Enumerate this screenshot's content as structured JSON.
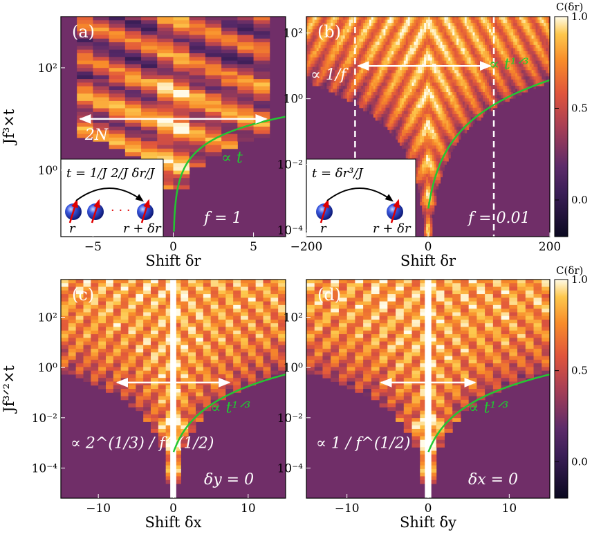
{
  "figure": {
    "colorbar_title": "C(δr)",
    "colorbar_ticks": [
      "1.0",
      "0.5",
      "0.0"
    ],
    "colorbar_values": [
      1.0,
      0.5,
      0.0
    ]
  },
  "chart_data": [
    {
      "type": "heatmap",
      "panel_label": "(a)",
      "xlabel": "Shift δr",
      "ylabel": "Jf³×t",
      "xlim": [
        -7,
        7
      ],
      "ylim_log10": [
        -1.3,
        3.0
      ],
      "x_ticks": [
        -5,
        0,
        5
      ],
      "x_tick_labels": [
        "−5",
        "0",
        "5"
      ],
      "y_ticks_log10": [
        0,
        2
      ],
      "y_tick_labels": [
        "10⁰",
        "10²"
      ],
      "curve": {
        "label": "∝ t",
        "law": "linear",
        "color": "#22c832"
      },
      "arrow": {
        "from": -5.8,
        "to": 5.8,
        "at_log10": 1.0,
        "label": "2N"
      },
      "param_label": "f = 1",
      "inset": {
        "eq": "t = 1/J   2/J   δr/J",
        "dots": "· · ·",
        "left_site": "r",
        "right_site": "r + δr"
      }
    },
    {
      "type": "heatmap",
      "panel_label": "(b)",
      "xlabel": "Shift δr",
      "ylabel": "",
      "xlim": [
        -200,
        200
      ],
      "ylim_log10": [
        -4.2,
        2.5
      ],
      "x_ticks": [
        -200,
        0,
        200
      ],
      "x_tick_labels": [
        "−200",
        "0",
        "200"
      ],
      "y_ticks_log10": [
        -4,
        -2,
        0,
        2
      ],
      "y_tick_labels": [
        "10⁻⁴",
        "10⁻²",
        "10⁰",
        "10²"
      ],
      "curve": {
        "label": "∝ t¹ᐟ³",
        "law": "t^(1/3)",
        "color": "#22c832"
      },
      "dashed_lines_x": [
        -120,
        108
      ],
      "arrow": {
        "from": -115,
        "to": 103,
        "at_log10": 1.0,
        "label": "∝ 1/f"
      },
      "param_label": "f = 0.01",
      "inset": {
        "eq": "t = δr³/J",
        "left_site": "r",
        "right_site": "r + δr"
      }
    },
    {
      "type": "heatmap",
      "panel_label": "(c)",
      "xlabel": "Shift δx",
      "ylabel": "Jf³ᐟ²×t",
      "xlim": [
        -15,
        15
      ],
      "ylim_log10": [
        -5.2,
        3.5
      ],
      "x_ticks": [
        -10,
        0,
        10
      ],
      "x_tick_labels": [
        "−10",
        "0",
        "10"
      ],
      "y_ticks_log10": [
        -4,
        -2,
        0,
        2
      ],
      "y_tick_labels": [
        "10⁻⁴",
        "10⁻²",
        "10⁰",
        "10²"
      ],
      "curve": {
        "label": "∝ t¹ᐟ³",
        "law": "t^(1/3)",
        "color": "#22c832"
      },
      "arrow": {
        "from": -7.5,
        "to": 7.5,
        "at_log10": -0.6,
        "label": ""
      },
      "scaling_label": "∝ 2^(1/3) / f^(1/2)",
      "param_label": "δy = 0"
    },
    {
      "type": "heatmap",
      "panel_label": "(d)",
      "xlabel": "Shift δy",
      "ylabel": "",
      "xlim": [
        -15,
        15
      ],
      "ylim_log10": [
        -5.2,
        3.5
      ],
      "x_ticks": [
        -10,
        0,
        10
      ],
      "x_tick_labels": [
        "−10",
        "0",
        "10"
      ],
      "y_ticks_log10": [
        -4,
        -2,
        0,
        2
      ],
      "y_tick_labels": [
        "10⁻⁴",
        "10⁻²",
        "10⁰",
        "10²"
      ],
      "curve": {
        "label": "∝ t¹ᐟ³",
        "law": "t^(1/3)",
        "color": "#22c832"
      },
      "arrow": {
        "from": -5.8,
        "to": 5.8,
        "at_log10": -0.6,
        "label": ""
      },
      "scaling_label": "∝ 1 / f^(1/2)",
      "param_label": "δx = 0"
    }
  ]
}
